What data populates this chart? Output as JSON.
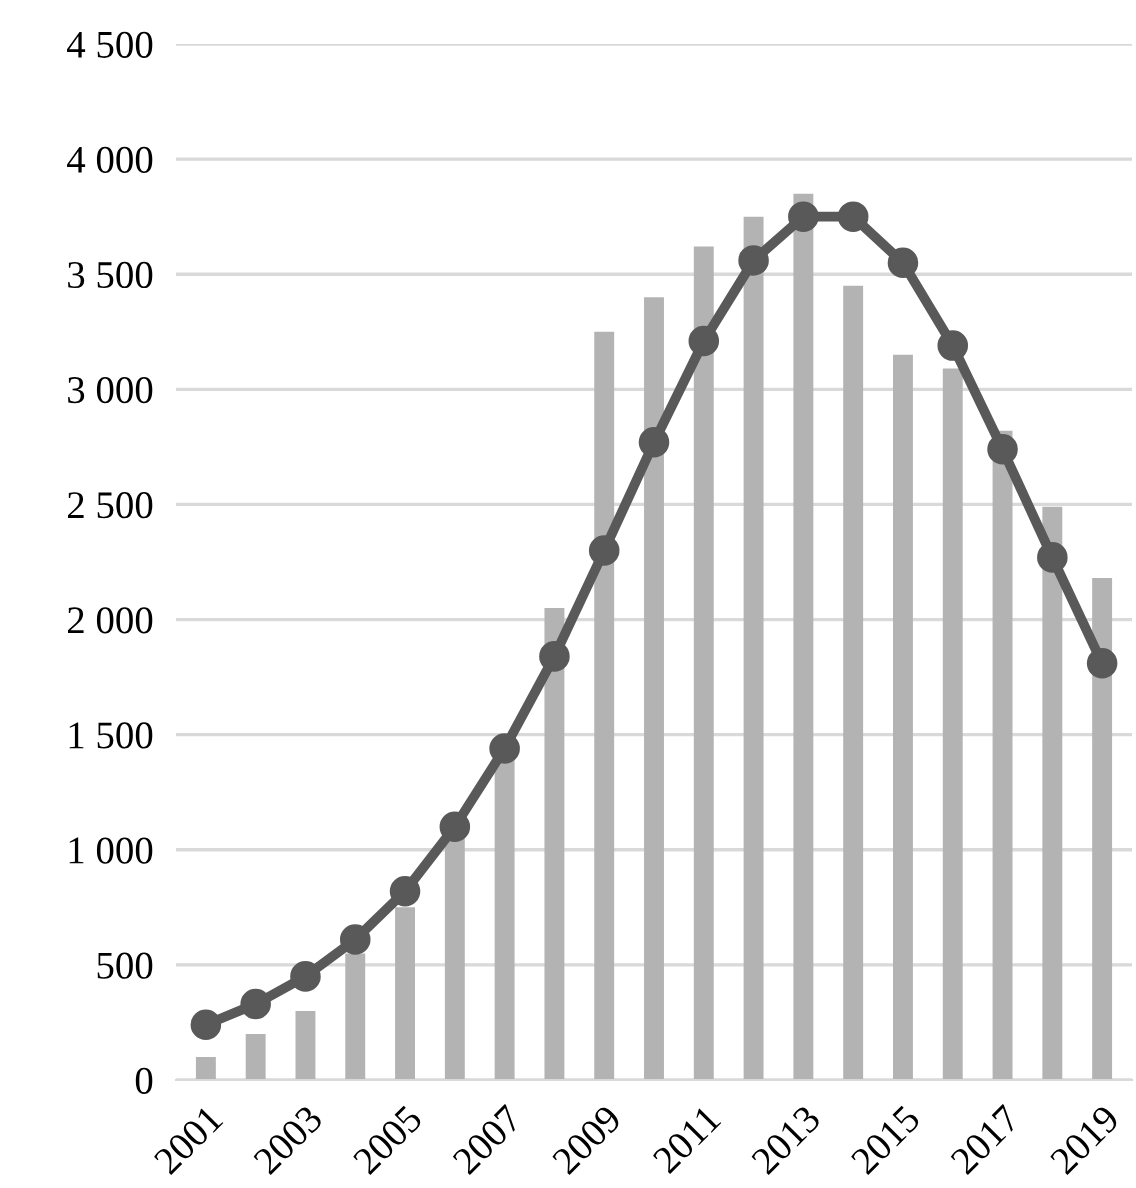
{
  "chart_data": {
    "type": "bar",
    "categories": [
      "2001",
      null,
      "2003",
      null,
      "2005",
      null,
      "2007",
      null,
      "2009",
      null,
      "2011",
      null,
      "2013",
      null,
      "2015",
      null,
      "2017",
      null,
      "2019"
    ],
    "series": [
      {
        "color": "#b3b3b3",
        "values": [
          100,
          200,
          300,
          550,
          750,
          1050,
          1400,
          2050,
          3250,
          3400,
          3620,
          3750,
          3850,
          3450,
          3150,
          3090,
          2820,
          2490,
          2180
        ]
      },
      {
        "type": "line",
        "color": "#595959",
        "values": [
          240,
          330,
          450,
          610,
          820,
          1100,
          1440,
          1840,
          2300,
          2770,
          3210,
          3560,
          3750,
          3750,
          3550,
          3190,
          2740,
          2270,
          1810
        ]
      }
    ],
    "ylim": [
      0,
      4500
    ],
    "yticks": [
      0,
      500,
      {
        "value": 1000,
        "label": "1 000"
      },
      {
        "value": 1500,
        "label": "1 500"
      },
      {
        "value": 2000,
        "label": "2 000"
      },
      {
        "value": 2500,
        "label": "2 500"
      },
      {
        "value": 3000,
        "label": "3 000"
      },
      {
        "value": 3500,
        "label": "3 500"
      },
      {
        "value": 4000,
        "label": "4 000"
      },
      {
        "value": 4500,
        "label": "4 500"
      }
    ],
    "grid": "y",
    "marker": "circle",
    "line_style": "solid",
    "legend": false
  }
}
